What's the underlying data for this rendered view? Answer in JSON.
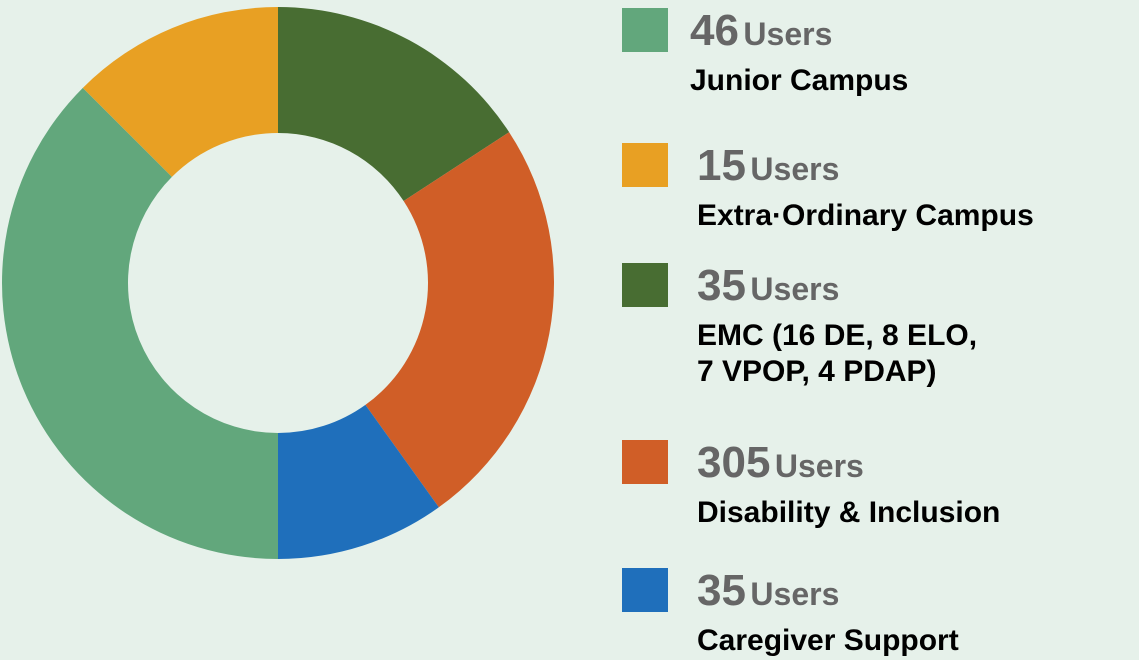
{
  "chart_data": {
    "type": "donut",
    "categories": [
      "Junior Campus",
      "Extra·Ordinary Campus",
      [
        "EMC (16 DE, 8 ELO,",
        "7 VPOP, 4 PDAP)"
      ],
      "Disability & Inclusion",
      "Caregiver Support"
    ],
    "values": [
      37.5,
      12.5,
      15.8,
      24.3,
      9.9
    ],
    "colors": [
      "#62a77c",
      "#e8a023",
      "#486d32",
      "#d05e27",
      "#1f6fbb"
    ],
    "counts": [
      46,
      15,
      35,
      305,
      35
    ],
    "unit": "Users"
  }
}
